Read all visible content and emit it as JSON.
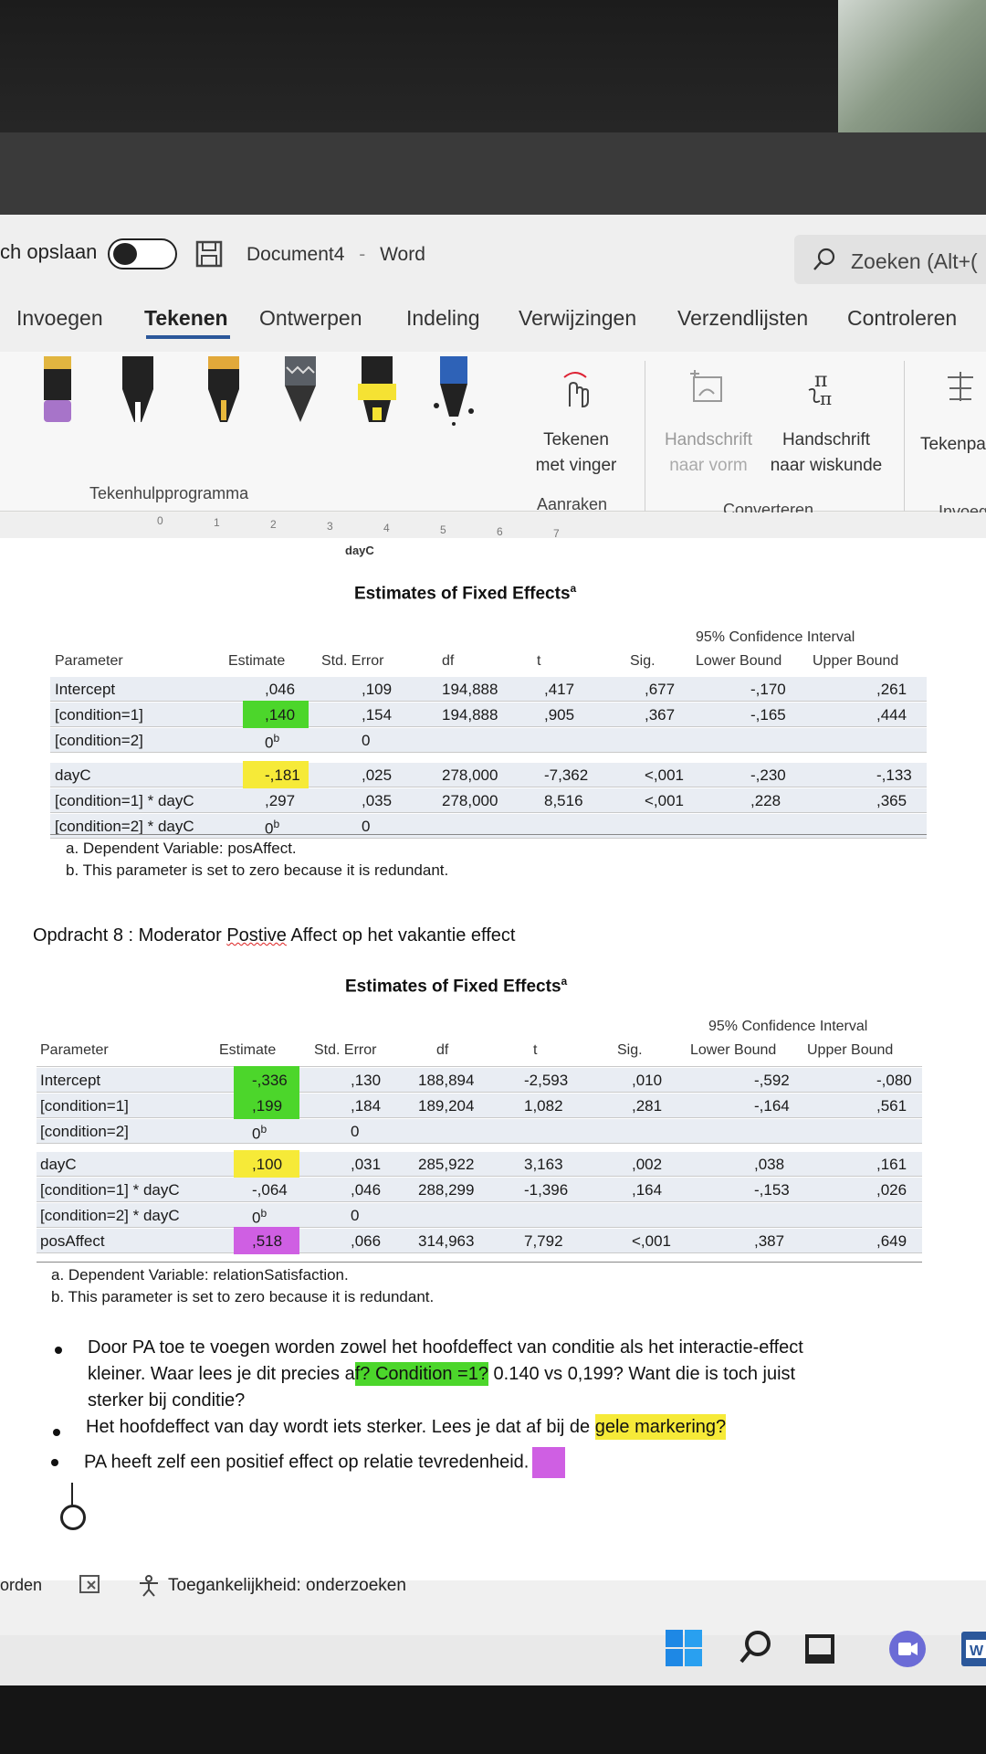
{
  "titlebar": {
    "autosave_label": "ch opslaan",
    "doc_name": "Document4",
    "separator": "-",
    "app_name": "Word",
    "search_placeholder": "Zoeken (Alt+("
  },
  "ribbon": {
    "tabs": [
      "Invoegen",
      "Tekenen",
      "Ontwerpen",
      "Indeling",
      "Verwijzingen",
      "Verzendlijsten",
      "Controleren"
    ],
    "active_tab": "Tekenen",
    "draw_with_finger": [
      "Tekenen",
      "met vinger"
    ],
    "ink_to_shape": [
      "Handschrift",
      "naar vorm"
    ],
    "ink_to_math": [
      "Handschrift",
      "naar wiskunde"
    ],
    "ink_replay": "Tekenpa",
    "groups": {
      "tools": "Tekenhulpprogramma",
      "touch": "Aanraken",
      "convert": "Converteren",
      "insert": "Invoeg"
    }
  },
  "chart_fragment": {
    "ticks": [
      "0",
      "1",
      "2",
      "3",
      "4",
      "5",
      "6",
      "7"
    ],
    "xlabel": "dayC"
  },
  "table1": {
    "title": "Estimates of Fixed Effects",
    "footnote_mark": "a",
    "ci_header": "95% Confidence Interval",
    "headers": [
      "Parameter",
      "Estimate",
      "Std. Error",
      "df",
      "t",
      "Sig.",
      "Lower Bound",
      "Upper Bound"
    ],
    "rows": [
      [
        "Intercept",
        ",046",
        ",109",
        "194,888",
        ",417",
        ",677",
        "-,170",
        ",261"
      ],
      [
        "[condition=1]",
        ",140",
        ",154",
        "194,888",
        ",905",
        ",367",
        "-,165",
        ",444"
      ],
      [
        "[condition=2]",
        "0b",
        "0",
        "",
        "",
        "",
        "",
        ""
      ],
      [
        "dayC",
        "-,181",
        ",025",
        "278,000",
        "-7,362",
        "<,001",
        "-,230",
        "-,133"
      ],
      [
        "[condition=1] * dayC",
        ",297",
        ",035",
        "278,000",
        "8,516",
        "<,001",
        ",228",
        ",365"
      ],
      [
        "[condition=2] * dayC",
        "0b",
        "0",
        "",
        "",
        "",
        "",
        ""
      ]
    ],
    "notes": [
      "a. Dependent Variable: posAffect.",
      "b. This parameter is set to zero because it is redundant."
    ]
  },
  "heading": {
    "prefix": "Opdracht 8 : Moderator ",
    "misspelled": "Postive",
    "suffix": " Affect op het vakantie effect"
  },
  "table2": {
    "title": "Estimates of Fixed Effects",
    "footnote_mark": "a",
    "ci_header": "95% Confidence Interval",
    "headers": [
      "Parameter",
      "Estimate",
      "Std. Error",
      "df",
      "t",
      "Sig.",
      "Lower Bound",
      "Upper Bound"
    ],
    "rows": [
      [
        "Intercept",
        "-,336",
        ",130",
        "188,894",
        "-2,593",
        ",010",
        "-,592",
        "-,080"
      ],
      [
        "[condition=1]",
        ",199",
        ",184",
        "189,204",
        "1,082",
        ",281",
        "-,164",
        ",561"
      ],
      [
        "[condition=2]",
        "0b",
        "0",
        "",
        "",
        "",
        "",
        ""
      ],
      [
        "dayC",
        ",100",
        ",031",
        "285,922",
        "3,163",
        ",002",
        ",038",
        ",161"
      ],
      [
        "[condition=1] * dayC",
        "-,064",
        ",046",
        "288,299",
        "-1,396",
        ",164",
        "-,153",
        ",026"
      ],
      [
        "[condition=2] * dayC",
        "0b",
        "0",
        "",
        "",
        "",
        "",
        ""
      ],
      [
        "posAffect",
        ",518",
        ",066",
        "314,963",
        "7,792",
        "<,001",
        ",387",
        ",649"
      ]
    ],
    "notes": [
      "a. Dependent Variable: relationSatisfaction.",
      "b. This parameter is set to zero because it is redundant."
    ]
  },
  "bullets": {
    "b1_line1": "Door PA toe te voegen worden zowel het hoofdeffect van conditie als het interactie-effect",
    "b1_line2_pre": "kleiner. Waar lees je dit precies a",
    "b1_line2_hl": "f? Condition =1?",
    "b1_line2_post": " 0.140 vs 0,199? Want die is toch juist",
    "b1_line3": "sterker bij conditie?",
    "b2_pre": "Het hoofdeffect van day wordt iets sterker. Lees je dat af bij de ",
    "b2_hl": "gele markering?",
    "b3": "PA heeft zelf een positief effect op relatie tevredenheid."
  },
  "statusbar": {
    "left": "orden",
    "accessibility": "Toegankelijkheid: onderzoeken"
  },
  "colors": {
    "green_highlight": "#4cd62b",
    "yellow_highlight": "#f6ea38",
    "purple_highlight": "#cf5fe3",
    "accent": "#2b579a"
  }
}
